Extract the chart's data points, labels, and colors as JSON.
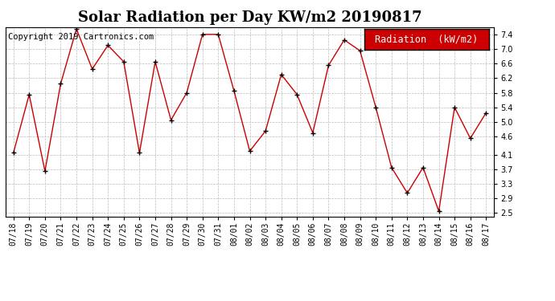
{
  "title": "Solar Radiation per Day KW/m2 20190817",
  "copyright_text": "Copyright 2019 Cartronics.com",
  "legend_label": "Radiation  (kW/m2)",
  "dates": [
    "07/18",
    "07/19",
    "07/20",
    "07/21",
    "07/22",
    "07/23",
    "07/24",
    "07/25",
    "07/26",
    "07/27",
    "07/28",
    "07/29",
    "07/30",
    "07/31",
    "08/01",
    "08/02",
    "08/03",
    "08/04",
    "08/05",
    "08/06",
    "08/07",
    "08/08",
    "08/09",
    "08/10",
    "08/11",
    "08/12",
    "08/13",
    "08/14",
    "08/15",
    "08/16",
    "08/17"
  ],
  "values": [
    4.15,
    5.75,
    3.65,
    6.05,
    7.55,
    6.45,
    7.1,
    6.65,
    4.15,
    6.65,
    5.05,
    5.8,
    7.4,
    7.4,
    5.85,
    4.2,
    4.75,
    6.3,
    5.75,
    4.7,
    6.55,
    7.25,
    6.95,
    5.4,
    3.75,
    3.05,
    3.75,
    2.55,
    5.4,
    4.55,
    5.25
  ],
  "ylim": [
    2.4,
    7.6
  ],
  "yticks": [
    2.5,
    2.9,
    3.3,
    3.7,
    4.1,
    4.6,
    5.0,
    5.4,
    5.8,
    6.2,
    6.6,
    7.0,
    7.4
  ],
  "line_color": "#cc0000",
  "marker_color": "#000000",
  "bg_color": "#ffffff",
  "grid_color": "#bbbbbb",
  "legend_bg": "#cc0000",
  "legend_text_color": "#ffffff",
  "title_fontsize": 13,
  "copyright_fontsize": 7.5,
  "tick_fontsize": 7,
  "legend_fontsize": 8.5
}
